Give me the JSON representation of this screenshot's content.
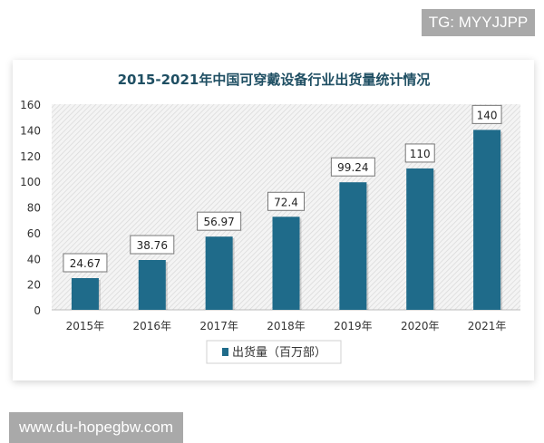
{
  "watermarks": {
    "top_right": "TG: MYYJJPP",
    "bottom_left": "www.du-hopegbw.com"
  },
  "colors": {
    "bar": "#1f6b8a",
    "title": "#1f4f63",
    "background_hatch": "#d8d8d8"
  },
  "chart_data": {
    "type": "bar",
    "title": "2015-2021年中国可穿戴设备行业出货量统计情况",
    "categories": [
      "2015年",
      "2016年",
      "2017年",
      "2018年",
      "2019年",
      "2020年",
      "2021年"
    ],
    "series": [
      {
        "name": "出货量（百万部）",
        "values": [
          24.67,
          38.76,
          56.97,
          72.4,
          99.24,
          110,
          140
        ]
      }
    ],
    "data_labels": [
      "24.67",
      "38.76",
      "56.97",
      "72.4",
      "99.24",
      "110",
      "140"
    ],
    "ylim": [
      0,
      160
    ],
    "yticks": [
      0,
      20,
      40,
      60,
      80,
      100,
      120,
      140,
      160
    ],
    "grid": false,
    "background": "hatched",
    "legend": {
      "position": "bottom",
      "label": "出货量（百万部）"
    }
  }
}
